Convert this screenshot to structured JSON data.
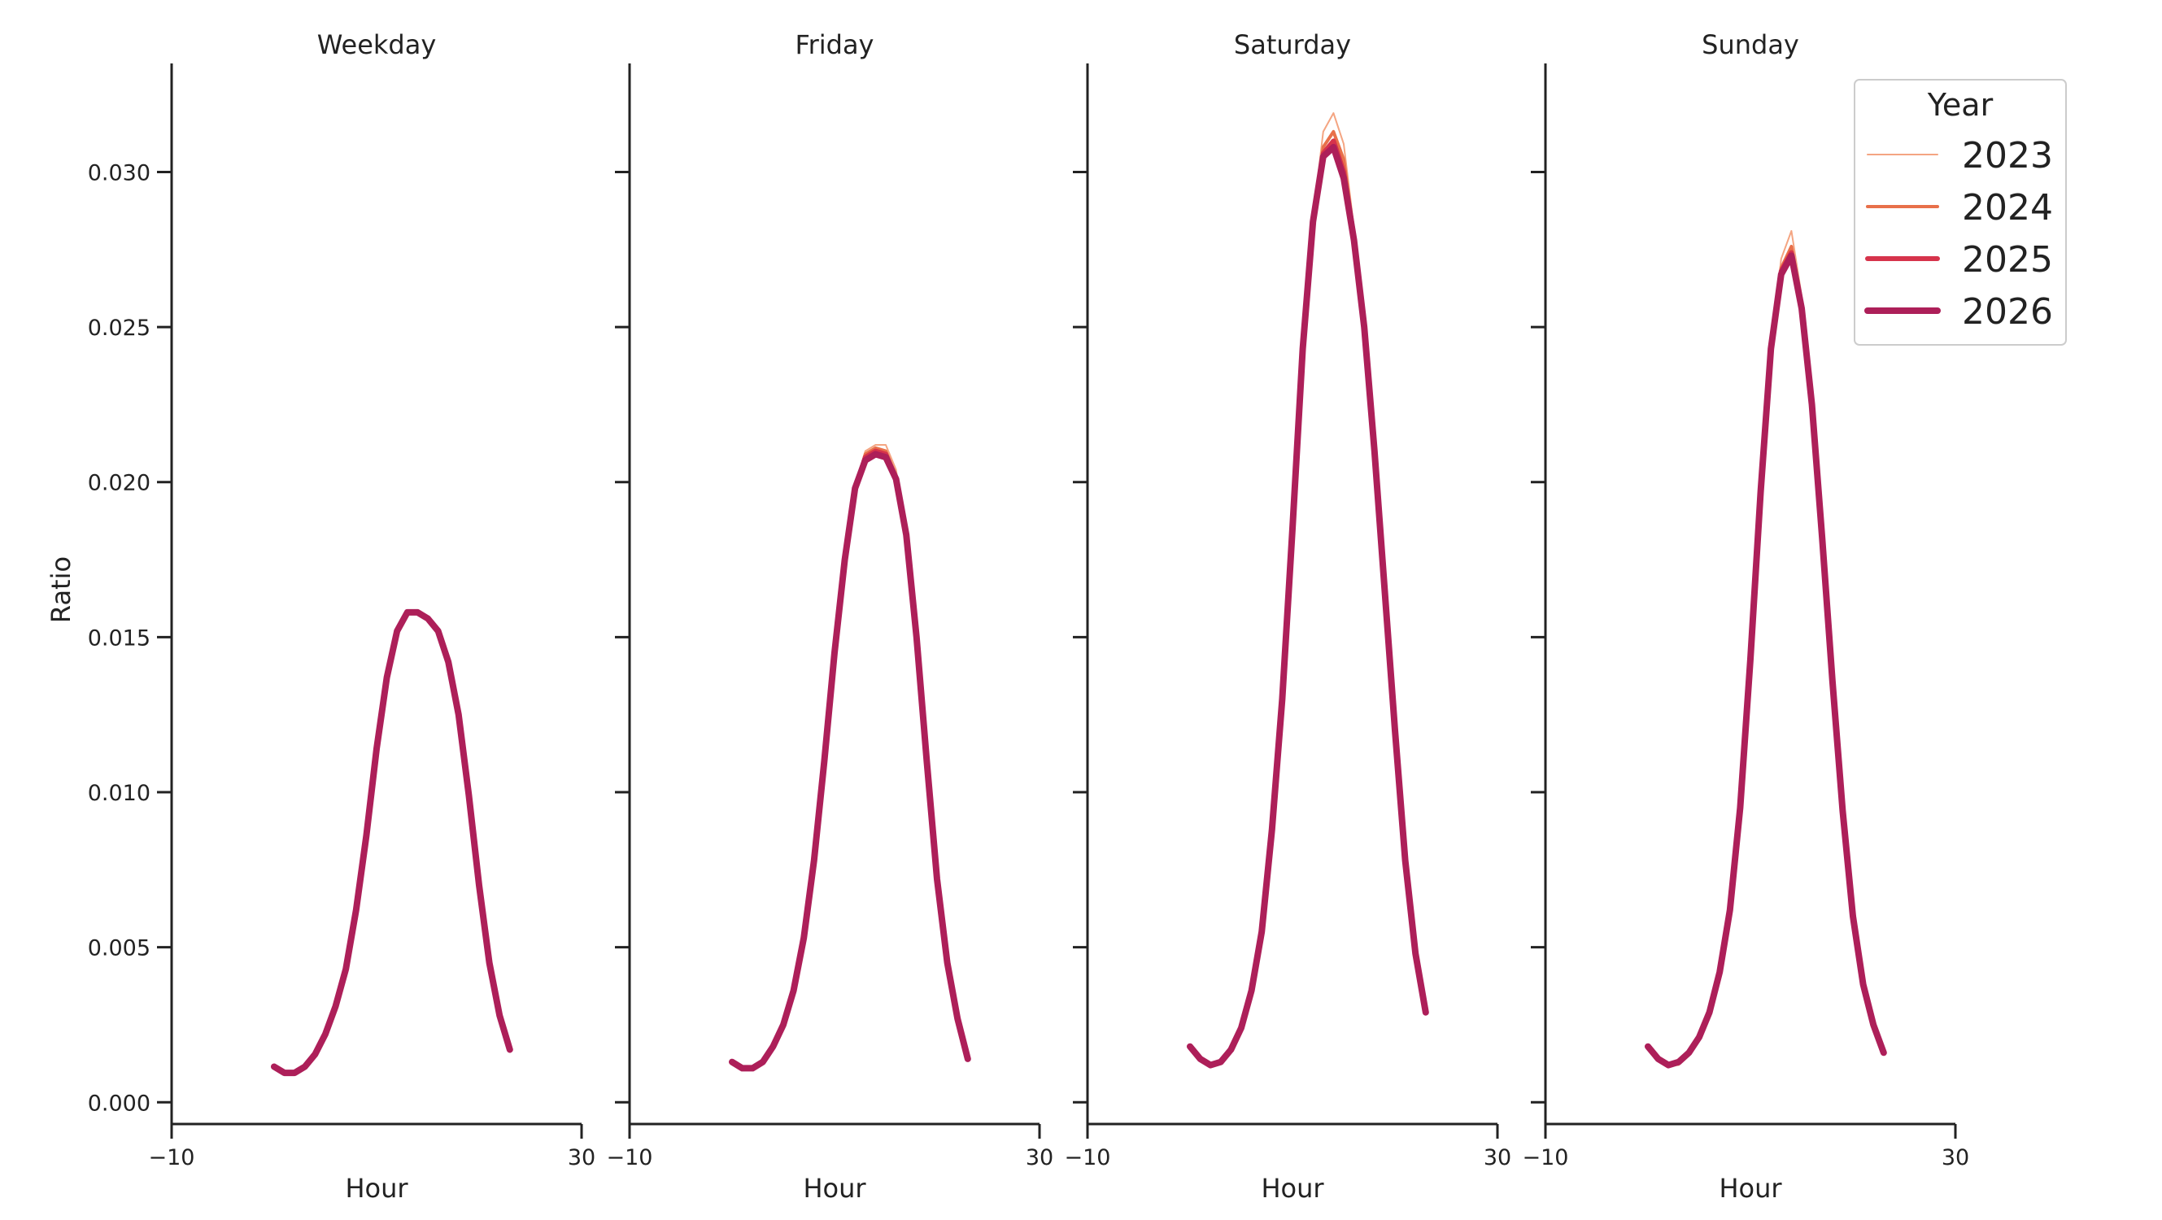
{
  "chart_data": {
    "type": "line",
    "ylabel": "Ratio",
    "xlabel": "Hour",
    "xlim": [
      -10,
      30
    ],
    "ylim": [
      -0.0007,
      0.0335
    ],
    "x_ticks": [
      -10,
      30
    ],
    "x_tick_labels": [
      "−10",
      "30"
    ],
    "y_ticks": [
      0.0,
      0.005,
      0.01,
      0.015,
      0.02,
      0.025,
      0.03
    ],
    "y_tick_labels": [
      "0.000",
      "0.005",
      "0.010",
      "0.015",
      "0.020",
      "0.025",
      "0.030"
    ],
    "x": [
      0,
      1,
      2,
      3,
      4,
      5,
      6,
      7,
      8,
      9,
      10,
      11,
      12,
      13,
      14,
      15,
      16,
      17,
      18,
      19,
      20,
      21,
      22,
      23
    ],
    "legend": {
      "title": "Year",
      "position": "top-right"
    },
    "series_styles": [
      {
        "name": "2023",
        "color": "#f4a582",
        "width": 2
      },
      {
        "name": "2024",
        "color": "#e8704a",
        "width": 4
      },
      {
        "name": "2025",
        "color": "#d6334b",
        "width": 6
      },
      {
        "name": "2026",
        "color": "#ad1f59",
        "width": 8
      }
    ],
    "panels": [
      {
        "title": "Weekday",
        "series": [
          {
            "name": "2023",
            "values": [
              0.00115,
              0.00095,
              0.00095,
              0.00115,
              0.00155,
              0.0022,
              0.0031,
              0.0043,
              0.0062,
              0.0086,
              0.0114,
              0.0137,
              0.0152,
              0.0158,
              0.0158,
              0.0156,
              0.0152,
              0.0142,
              0.0125,
              0.0099,
              0.007,
              0.0045,
              0.0028,
              0.0017
            ]
          },
          {
            "name": "2024",
            "values": [
              0.00115,
              0.00095,
              0.00095,
              0.00115,
              0.00155,
              0.0022,
              0.0031,
              0.0043,
              0.0062,
              0.0086,
              0.0114,
              0.0137,
              0.0152,
              0.0158,
              0.0158,
              0.0156,
              0.0152,
              0.0142,
              0.0125,
              0.0099,
              0.007,
              0.0045,
              0.0028,
              0.0017
            ]
          },
          {
            "name": "2025",
            "values": [
              0.00115,
              0.00095,
              0.00095,
              0.00115,
              0.00155,
              0.0022,
              0.0031,
              0.0043,
              0.0062,
              0.0086,
              0.0114,
              0.0137,
              0.0152,
              0.0158,
              0.0158,
              0.0156,
              0.0152,
              0.0142,
              0.0125,
              0.0099,
              0.007,
              0.0045,
              0.0028,
              0.0017
            ]
          },
          {
            "name": "2026",
            "values": [
              0.00115,
              0.00095,
              0.00095,
              0.00115,
              0.00155,
              0.0022,
              0.0031,
              0.0043,
              0.0062,
              0.0086,
              0.0114,
              0.0137,
              0.0152,
              0.0158,
              0.0158,
              0.0156,
              0.0152,
              0.0142,
              0.0125,
              0.0099,
              0.007,
              0.0045,
              0.0028,
              0.0017
            ]
          }
        ]
      },
      {
        "title": "Friday",
        "series": [
          {
            "name": "2023",
            "values": [
              0.0013,
              0.0011,
              0.0011,
              0.0013,
              0.0018,
              0.0025,
              0.0036,
              0.0053,
              0.0078,
              0.011,
              0.0145,
              0.0175,
              0.0198,
              0.021,
              0.0212,
              0.0212,
              0.0204,
              0.0183,
              0.015,
              0.011,
              0.0072,
              0.0045,
              0.0027,
              0.0014
            ]
          },
          {
            "name": "2024",
            "values": [
              0.0013,
              0.0011,
              0.0011,
              0.0013,
              0.0018,
              0.0025,
              0.0036,
              0.0053,
              0.0078,
              0.011,
              0.0145,
              0.0175,
              0.0198,
              0.0209,
              0.0211,
              0.021,
              0.0202,
              0.0183,
              0.015,
              0.011,
              0.0072,
              0.0045,
              0.0027,
              0.0014
            ]
          },
          {
            "name": "2025",
            "values": [
              0.0013,
              0.0011,
              0.0011,
              0.0013,
              0.0018,
              0.0025,
              0.0036,
              0.0053,
              0.0078,
              0.011,
              0.0145,
              0.0175,
              0.0198,
              0.0208,
              0.021,
              0.0209,
              0.0201,
              0.0183,
              0.015,
              0.011,
              0.0072,
              0.0045,
              0.0027,
              0.0014
            ]
          },
          {
            "name": "2026",
            "values": [
              0.0013,
              0.0011,
              0.0011,
              0.0013,
              0.0018,
              0.0025,
              0.0036,
              0.0053,
              0.0078,
              0.011,
              0.0145,
              0.0175,
              0.0198,
              0.0207,
              0.0209,
              0.0208,
              0.0201,
              0.0183,
              0.015,
              0.011,
              0.0072,
              0.0045,
              0.0027,
              0.0014
            ]
          }
        ]
      },
      {
        "title": "Saturday",
        "series": [
          {
            "name": "2023",
            "values": [
              0.0018,
              0.0014,
              0.0012,
              0.0013,
              0.0017,
              0.0024,
              0.0036,
              0.0055,
              0.0088,
              0.013,
              0.0185,
              0.0243,
              0.0285,
              0.0313,
              0.0319,
              0.0309,
              0.0282,
              0.0252,
              0.021,
              0.0165,
              0.012,
              0.0078,
              0.0048,
              0.0029
            ]
          },
          {
            "name": "2024",
            "values": [
              0.0018,
              0.0014,
              0.0012,
              0.0013,
              0.0017,
              0.0024,
              0.0036,
              0.0055,
              0.0088,
              0.013,
              0.0185,
              0.0243,
              0.0284,
              0.0308,
              0.0313,
              0.0304,
              0.028,
              0.0251,
              0.021,
              0.0165,
              0.012,
              0.0078,
              0.0048,
              0.0029
            ]
          },
          {
            "name": "2025",
            "values": [
              0.0018,
              0.0014,
              0.0012,
              0.0013,
              0.0017,
              0.0024,
              0.0036,
              0.0055,
              0.0088,
              0.013,
              0.0185,
              0.0243,
              0.0284,
              0.0306,
              0.031,
              0.03,
              0.0279,
              0.025,
              0.021,
              0.0165,
              0.012,
              0.0078,
              0.0048,
              0.0029
            ]
          },
          {
            "name": "2026",
            "values": [
              0.0018,
              0.0014,
              0.0012,
              0.0013,
              0.0017,
              0.0024,
              0.0036,
              0.0055,
              0.0088,
              0.013,
              0.0185,
              0.0243,
              0.0284,
              0.0305,
              0.0308,
              0.0298,
              0.0278,
              0.025,
              0.021,
              0.0165,
              0.012,
              0.0078,
              0.0048,
              0.0029
            ]
          }
        ]
      },
      {
        "title": "Sunday",
        "series": [
          {
            "name": "2023",
            "values": [
              0.0018,
              0.0014,
              0.0012,
              0.0012,
              0.0015,
              0.002,
              0.0028,
              0.0042,
              0.0062,
              0.0095,
              0.0143,
              0.0197,
              0.0243,
              0.0272,
              0.0281,
              0.026,
              0.0226,
              0.0182,
              0.0136,
              0.0094,
              0.006,
              0.0038,
              0.0025,
              0.0016
            ]
          },
          {
            "name": "2024",
            "values": [
              0.0018,
              0.0014,
              0.0012,
              0.0013,
              0.0016,
              0.0021,
              0.0029,
              0.0042,
              0.0062,
              0.0095,
              0.0143,
              0.0197,
              0.0243,
              0.0269,
              0.0276,
              0.0258,
              0.0225,
              0.0182,
              0.0136,
              0.0094,
              0.006,
              0.0038,
              0.0025,
              0.0016
            ]
          },
          {
            "name": "2025",
            "values": [
              0.0018,
              0.0014,
              0.0012,
              0.0013,
              0.0016,
              0.0021,
              0.0029,
              0.0042,
              0.0062,
              0.0095,
              0.0143,
              0.0197,
              0.0243,
              0.0268,
              0.0274,
              0.0257,
              0.0225,
              0.0182,
              0.0136,
              0.0094,
              0.006,
              0.0038,
              0.0025,
              0.0016
            ]
          },
          {
            "name": "2026",
            "values": [
              0.0018,
              0.0014,
              0.0012,
              0.0013,
              0.0016,
              0.0021,
              0.0029,
              0.0042,
              0.0062,
              0.0095,
              0.0143,
              0.0197,
              0.0243,
              0.0267,
              0.0273,
              0.0256,
              0.0225,
              0.0182,
              0.0136,
              0.0094,
              0.006,
              0.0038,
              0.0025,
              0.0016
            ]
          }
        ]
      }
    ]
  }
}
